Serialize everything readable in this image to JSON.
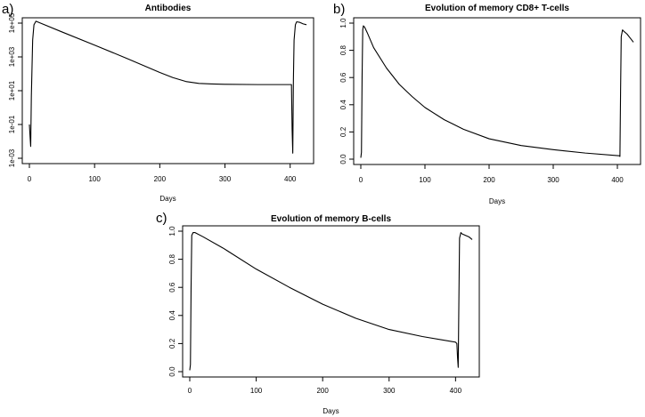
{
  "chart_data": [
    {
      "type": "line",
      "panel": "a)",
      "title": "Antibodies",
      "xlabel": "Days",
      "ylabel": "",
      "xlim": [
        0,
        425
      ],
      "ylim": [
        0.001,
        100000
      ],
      "y_scale": "log",
      "xticks": [
        0,
        100,
        200,
        300,
        400
      ],
      "xtick_labels": [
        "0",
        "100",
        "200",
        "300",
        "400"
      ],
      "yticks": [
        0.001,
        0.1,
        10,
        1000,
        100000
      ],
      "ytick_labels": [
        "1e-03",
        "1e-01",
        "1e+01",
        "1e+03",
        "1e+05"
      ],
      "grid": false,
      "series": [
        {
          "x": [
            0,
            1,
            2,
            3,
            5,
            7,
            10,
            20,
            50,
            100,
            150,
            200,
            220,
            240,
            260,
            280,
            300,
            350,
            402,
            403,
            404,
            405,
            406,
            408,
            410,
            415,
            420,
            425
          ],
          "y": [
            0.1,
            0.02,
            0.005,
            5,
            10000,
            80000,
            130000,
            90000,
            30000,
            5000,
            800,
            120,
            60,
            35,
            27,
            25,
            24,
            23,
            23,
            0.05,
            0.002,
            50,
            10000,
            80000,
            120000,
            110000,
            90000,
            80000
          ]
        }
      ]
    },
    {
      "type": "line",
      "panel": "b)",
      "title": "Evolution of memory CD8+ T-cells",
      "xlabel": "Days",
      "ylabel": "",
      "xlim": [
        0,
        425
      ],
      "ylim": [
        0,
        1
      ],
      "xticks": [
        0,
        100,
        200,
        300,
        400
      ],
      "xtick_labels": [
        "0",
        "100",
        "200",
        "300",
        "400"
      ],
      "yticks": [
        0,
        0.2,
        0.4,
        0.6,
        0.8,
        1.0
      ],
      "ytick_labels": [
        "0.0",
        "0.2",
        "0.4",
        "0.6",
        "0.8",
        "1.0"
      ],
      "grid": false,
      "series": [
        {
          "x": [
            0,
            1,
            2,
            3,
            4,
            6,
            10,
            20,
            40,
            60,
            80,
            100,
            130,
            160,
            200,
            250,
            300,
            350,
            403,
            404,
            405,
            406,
            408,
            410,
            415,
            420,
            425
          ],
          "y": [
            0.01,
            0.05,
            0.6,
            0.95,
            0.98,
            0.97,
            0.93,
            0.82,
            0.67,
            0.55,
            0.46,
            0.38,
            0.29,
            0.22,
            0.15,
            0.1,
            0.07,
            0.045,
            0.025,
            0.02,
            0.5,
            0.9,
            0.95,
            0.94,
            0.92,
            0.89,
            0.86
          ]
        }
      ]
    },
    {
      "type": "line",
      "panel": "c)",
      "title": "Evolution of memory B-cells",
      "xlabel": "Days",
      "ylabel": "",
      "xlim": [
        0,
        425
      ],
      "ylim": [
        0,
        1
      ],
      "xticks": [
        0,
        100,
        200,
        300,
        400
      ],
      "xtick_labels": [
        "0",
        "100",
        "200",
        "300",
        "400"
      ],
      "yticks": [
        0,
        0.2,
        0.4,
        0.6,
        0.8,
        1.0
      ],
      "ytick_labels": [
        "0.0",
        "0.2",
        "0.4",
        "0.6",
        "0.8",
        "1.0"
      ],
      "grid": false,
      "series": [
        {
          "x": [
            0,
            1,
            2,
            3,
            5,
            8,
            20,
            50,
            100,
            150,
            200,
            250,
            300,
            350,
            400,
            402,
            403,
            404,
            405,
            406,
            408,
            410,
            415,
            420,
            425
          ],
          "y": [
            0.01,
            0.05,
            0.6,
            0.97,
            0.99,
            0.99,
            0.96,
            0.88,
            0.73,
            0.6,
            0.48,
            0.38,
            0.3,
            0.25,
            0.21,
            0.2,
            0.1,
            0.03,
            0.5,
            0.95,
            0.99,
            0.98,
            0.97,
            0.96,
            0.94
          ]
        }
      ]
    }
  ]
}
